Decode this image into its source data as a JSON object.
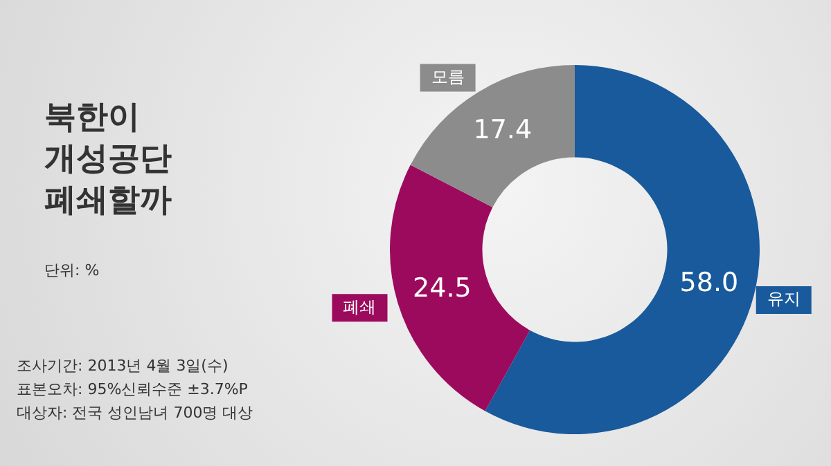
{
  "chart_data": {
    "type": "donut",
    "title": "북한이\n개성공단\n폐쇄할까",
    "categories": [
      "유지",
      "폐쇄",
      "모름"
    ],
    "values": [
      58.0,
      24.5,
      17.4
    ],
    "colors": [
      "#185a9c",
      "#9c0a5e",
      "#8c8c8c"
    ],
    "value_labels": [
      "58.0",
      "24.5",
      "17.4"
    ],
    "legend": false,
    "annotations": [
      "단위: %",
      "조사기간: 2013년 4월 3일(수)",
      "표본오차: 95%신뢰수준 ±3.7%P",
      "대상자: 전국 성인남녀 700명 대상"
    ]
  }
}
